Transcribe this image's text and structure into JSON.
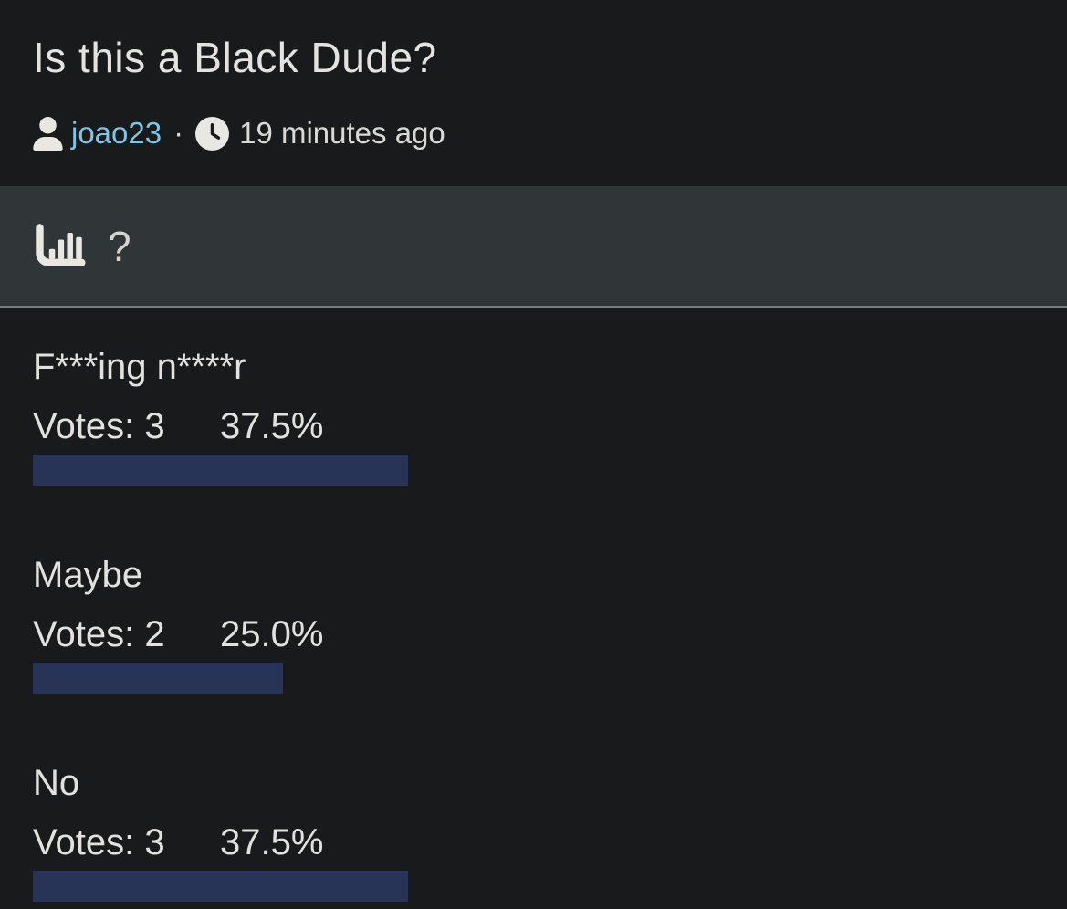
{
  "post": {
    "title": "Is this a Black Dude?",
    "author": "joao23",
    "separator": "·",
    "timestamp": "19 minutes ago"
  },
  "poll_banner": {
    "icon": "bar-chart-icon",
    "text": "?"
  },
  "poll": {
    "votes_label": "Votes:",
    "options": [
      {
        "label": "F***ing n****r",
        "votes": "3",
        "percent_label": "37.5%",
        "percent": 37.5
      },
      {
        "label": "Maybe",
        "votes": "2",
        "percent_label": "25.0%",
        "percent": 25.0
      },
      {
        "label": "No",
        "votes": "3",
        "percent_label": "37.5%",
        "percent": 37.5
      }
    ]
  },
  "colors": {
    "page_bg": "#191a1c",
    "band_bg": "#303538",
    "band_border": "#7c7970",
    "bar_fill": "#273357",
    "username": "#7fc4e6",
    "text_primary": "#e3e1de"
  }
}
